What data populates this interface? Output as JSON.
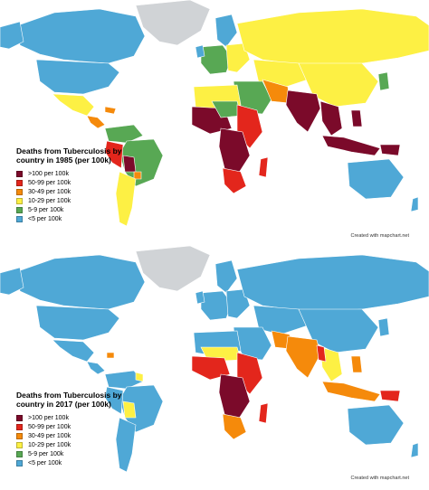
{
  "maps": [
    {
      "title_line1": "Deaths from Tuberculosis by",
      "title_line2": "country in 1985 (per 100k)",
      "credit": "Created with mapchart.net",
      "legend": [
        {
          "label": ">100 per 100k",
          "color": "#7b0a2a"
        },
        {
          "label": "50-99 per 100k",
          "color": "#e3261c"
        },
        {
          "label": "30-49 per 100k",
          "color": "#f58a0b"
        },
        {
          "label": "10-29 per 100k",
          "color": "#fdf044"
        },
        {
          "label": "5-9 per 100k",
          "color": "#58a854"
        },
        {
          "label": "<5 per 100k",
          "color": "#4fa8d6"
        }
      ]
    },
    {
      "title_line1": "Deaths from Tuberculosis by",
      "title_line2": "country in 2017 (per 100k)",
      "credit": "Created with mapchart.net",
      "legend": [
        {
          "label": ">100 per 100k",
          "color": "#7b0a2a"
        },
        {
          "label": "50-99 per 100k",
          "color": "#e3261c"
        },
        {
          "label": "30-49 per 100k",
          "color": "#f58a0b"
        },
        {
          "label": "10-29 per 100k",
          "color": "#fdf044"
        },
        {
          "label": "5-9 per 100k",
          "color": "#58a854"
        },
        {
          "label": "<5 per 100k",
          "color": "#4fa8d6"
        }
      ]
    }
  ],
  "colors": {
    "no_data": "#d0d3d6",
    "ocean": "#ffffff"
  }
}
